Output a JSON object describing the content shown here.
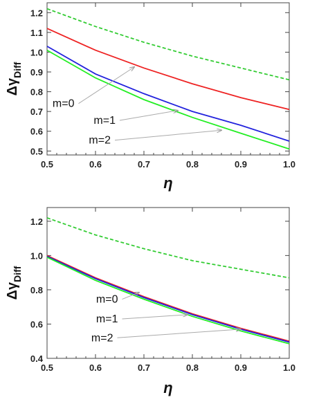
{
  "chart_data": [
    {
      "type": "line",
      "title": "",
      "xlabel": "η",
      "ylabel": {
        "main": "Δγ",
        "sub": "Diff"
      },
      "xlim": [
        0.5,
        1.0
      ],
      "ylim": [
        0.48,
        1.25
      ],
      "x_ticks": [
        0.5,
        0.6,
        0.7,
        0.8,
        0.9,
        1.0
      ],
      "x_tick_labels": [
        "0.5",
        "0.6",
        "0.7",
        "0.8",
        "0.9",
        "1.0"
      ],
      "y_ticks": [
        0.5,
        0.6,
        0.7,
        0.8,
        0.9,
        1.0,
        1.1,
        1.2
      ],
      "y_tick_labels": [
        "0.5",
        "0.6",
        "0.7",
        "0.8",
        "0.9",
        "1.0",
        "1.1",
        "1.2"
      ],
      "grid": false,
      "x": [
        0.5,
        0.6,
        0.7,
        0.8,
        0.9,
        1.0
      ],
      "series": [
        {
          "color": "#33cc33",
          "style": "dashed",
          "values": [
            1.22,
            1.13,
            1.05,
            0.98,
            0.92,
            0.86
          ]
        },
        {
          "color": "#ee2222",
          "style": "solid",
          "values": [
            1.12,
            1.01,
            0.92,
            0.84,
            0.77,
            0.71
          ]
        },
        {
          "color": "#2222dd",
          "style": "solid",
          "values": [
            1.03,
            0.89,
            0.79,
            0.7,
            0.63,
            0.55
          ]
        },
        {
          "color": "#22ee22",
          "style": "solid",
          "values": [
            1.01,
            0.87,
            0.76,
            0.67,
            0.59,
            0.51
          ]
        }
      ],
      "annotations": [
        {
          "text": "m=0",
          "from": [
            0.565,
            0.74
          ],
          "to": [
            0.68,
            0.925
          ]
        },
        {
          "text": "m=1",
          "from": [
            0.65,
            0.655
          ],
          "to": [
            0.77,
            0.705
          ]
        },
        {
          "text": "m=2",
          "from": [
            0.64,
            0.555
          ],
          "to": [
            0.86,
            0.605
          ]
        }
      ]
    },
    {
      "type": "line",
      "title": "",
      "xlabel": "η",
      "ylabel": {
        "main": "Δγ",
        "sub": "Diff"
      },
      "xlim": [
        0.5,
        1.0
      ],
      "ylim": [
        0.4,
        1.28
      ],
      "x_ticks": [
        0.5,
        0.6,
        0.7,
        0.8,
        0.9,
        1.0
      ],
      "x_tick_labels": [
        "0.5",
        "0.6",
        "0.7",
        "0.8",
        "0.9",
        "1.0"
      ],
      "y_ticks": [
        0.4,
        0.6,
        0.8,
        1.0,
        1.2
      ],
      "y_tick_labels": [
        "0.4",
        "0.6",
        "0.8",
        "1.0",
        "1.2"
      ],
      "grid": false,
      "x": [
        0.5,
        0.6,
        0.7,
        0.8,
        0.9,
        1.0
      ],
      "series": [
        {
          "color": "#33cc33",
          "style": "dashed",
          "values": [
            1.22,
            1.12,
            1.04,
            0.97,
            0.92,
            0.87
          ]
        },
        {
          "color": "#ee2222",
          "style": "solid",
          "values": [
            1.0,
            0.87,
            0.76,
            0.66,
            0.575,
            0.5
          ]
        },
        {
          "color": "#2222dd",
          "style": "solid",
          "values": [
            0.995,
            0.865,
            0.755,
            0.655,
            0.57,
            0.495
          ]
        },
        {
          "color": "#22ee22",
          "style": "solid",
          "values": [
            0.99,
            0.855,
            0.745,
            0.645,
            0.56,
            0.485
          ]
        }
      ],
      "annotations": [
        {
          "text": "m=0",
          "from": [
            0.655,
            0.745
          ],
          "to": [
            0.69,
            0.785
          ]
        },
        {
          "text": "m=1",
          "from": [
            0.655,
            0.63
          ],
          "to": [
            0.79,
            0.655
          ]
        },
        {
          "text": "m=2",
          "from": [
            0.645,
            0.52
          ],
          "to": [
            0.9,
            0.57
          ]
        }
      ]
    }
  ]
}
